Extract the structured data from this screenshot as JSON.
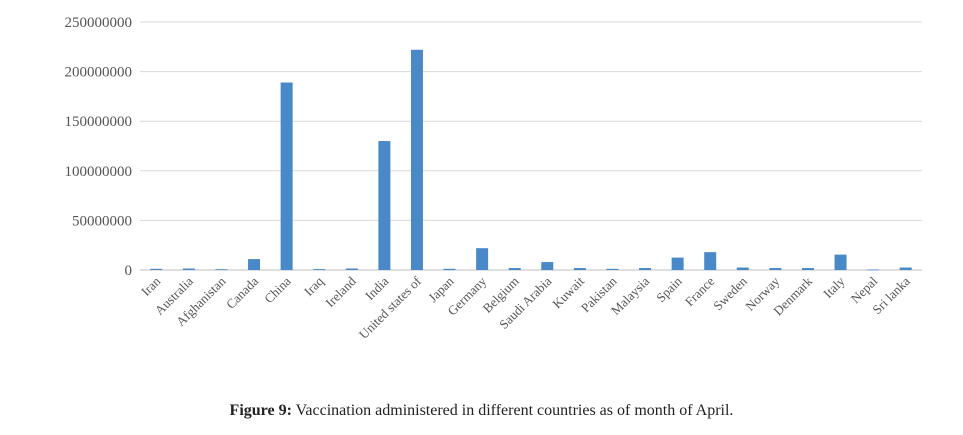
{
  "chart_data": {
    "type": "bar",
    "categories": [
      "Iran",
      "Australia",
      "Afghanistan",
      "Canada",
      "China",
      "Iraq",
      "Ireland",
      "India",
      "United states of",
      "Japan",
      "Germany",
      "Belgium",
      "Saudi Arabia",
      "Kuwait",
      "Pakistan",
      "Malaysia",
      "Spain",
      "France",
      "Sweden",
      "Norway",
      "Denmark",
      "Italy",
      "Nepal",
      "Sri lanka"
    ],
    "values": [
      1200000,
      1500000,
      800000,
      11000000,
      189000000,
      900000,
      1500000,
      130000000,
      222000000,
      1200000,
      22000000,
      2000000,
      8000000,
      2000000,
      1200000,
      2000000,
      12500000,
      18000000,
      2500000,
      2000000,
      2000000,
      15500000,
      500000,
      2500000
    ],
    "ylim": [
      0,
      250000000
    ],
    "yticks": [
      "0",
      "50000000",
      "100000000",
      "150000000",
      "200000000",
      "250000000"
    ],
    "bar_color": "#4a89c8",
    "grid": true,
    "legend": "none"
  },
  "caption": {
    "label": "Figure 9:",
    "text": " Vaccination administered in different countries as of month of April."
  }
}
